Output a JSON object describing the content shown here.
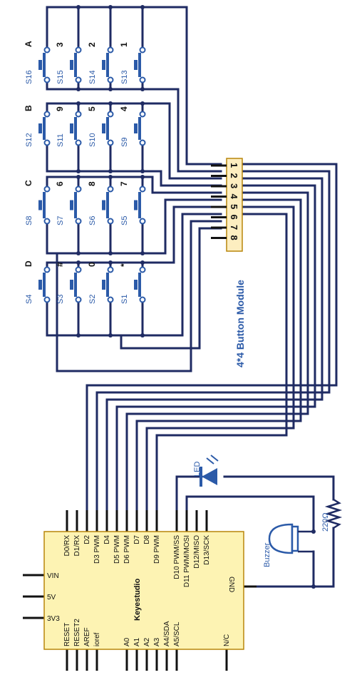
{
  "keypad": {
    "rows": [
      [
        {
          "id": "S16",
          "key": "A"
        },
        {
          "id": "S15",
          "key": "3"
        },
        {
          "id": "S14",
          "key": "2"
        },
        {
          "id": "S13",
          "key": "1"
        }
      ],
      [
        {
          "id": "S12",
          "key": "B"
        },
        {
          "id": "S11",
          "key": "9"
        },
        {
          "id": "S10",
          "key": "5"
        },
        {
          "id": "S9",
          "key": "4"
        }
      ],
      [
        {
          "id": "S8",
          "key": "C"
        },
        {
          "id": "S7",
          "key": "6"
        },
        {
          "id": "S6",
          "key": "8"
        },
        {
          "id": "S5",
          "key": "7"
        }
      ],
      [
        {
          "id": "S4",
          "key": "D"
        },
        {
          "id": "S3",
          "key": "#"
        },
        {
          "id": "S2",
          "key": "0"
        },
        {
          "id": "S1",
          "key": "*"
        }
      ]
    ]
  },
  "module": {
    "title": "4*4 Button Module",
    "pins": [
      "1",
      "2",
      "3",
      "4",
      "5",
      "6",
      "7",
      "8"
    ]
  },
  "board": {
    "name": "Keyestudio",
    "digital_pins": [
      "D0/RX",
      "D1/RX",
      "D2",
      "D3 PWM",
      "D4",
      "D5 PWM",
      "D6 PWM",
      "D7",
      "D8",
      "D9 PWM",
      "D10 PWM/SS",
      "D11 PWM/MOSI",
      "D12/MISO",
      "D13/SCK"
    ],
    "power_pins": [
      "VIN",
      "5V",
      "3V3"
    ],
    "left_pins": [
      "RESET",
      "RESET2",
      "AREF",
      "ioref"
    ],
    "analog_pins": [
      "A0",
      "A1",
      "A2",
      "A3",
      "A4/SDA",
      "A5/SCL"
    ],
    "other_pins": [
      "N/C"
    ],
    "gnd_label": "GND"
  },
  "components": {
    "led_label": "LED",
    "buzzer_label": "Buzzer",
    "resistor_label": "220Ω"
  },
  "colors": {
    "wire": "#1f2b63",
    "accent_blue": "#2b5aa8",
    "board_fill": "#fdf3b3",
    "module_fill": "#fdeec0"
  }
}
